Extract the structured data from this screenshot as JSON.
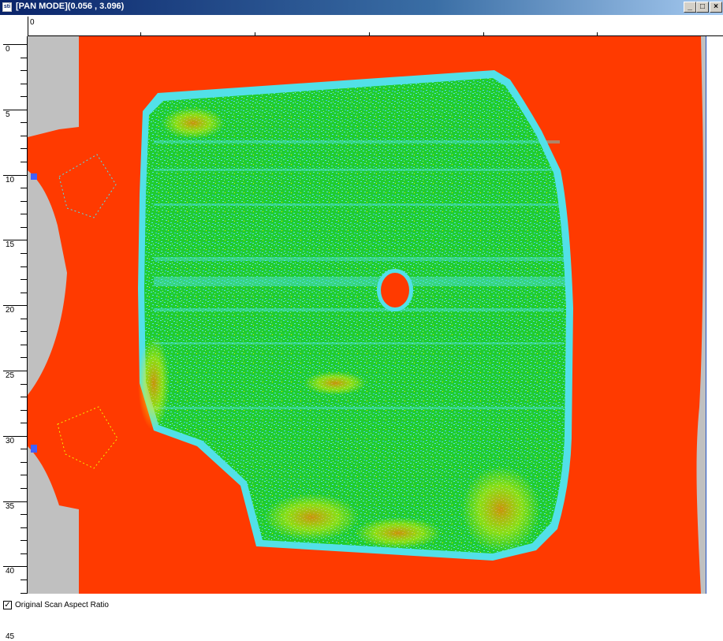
{
  "window": {
    "icon_text": "sti",
    "title": "[PAN MODE](0.056 , 3.096)",
    "controls": {
      "minimize": "_",
      "maximize": "□",
      "close": "×"
    }
  },
  "ruler": {
    "x_label": "0",
    "y_labels": [
      "0",
      "5",
      "10",
      "15",
      "20",
      "25",
      "30",
      "35",
      "40",
      "45"
    ]
  },
  "plot": {
    "background_color": "#ff3a00",
    "unscanned_color": "#c0c0c0",
    "heat_colors": [
      "#18d018",
      "#52e0e8",
      "#f0f000",
      "#ff8000",
      "#4060ff"
    ]
  },
  "footer": {
    "aspect_checkbox_checked": true,
    "aspect_checkbox_mark": "✓",
    "aspect_label": "Original Scan Aspect Ratio"
  }
}
